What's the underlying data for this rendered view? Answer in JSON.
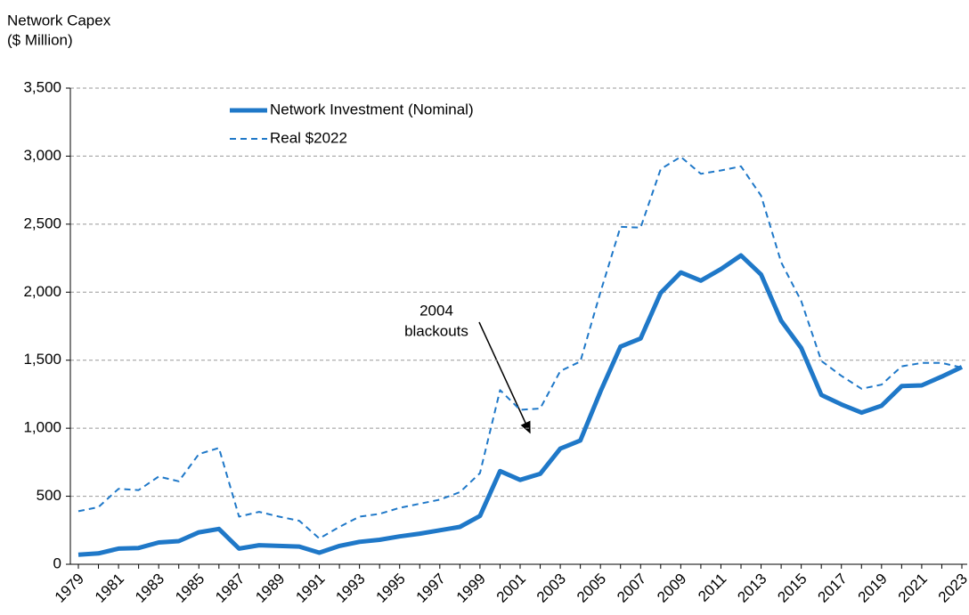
{
  "chart_data": {
    "type": "line",
    "y_label": [
      "Network Capex",
      "($ Million)"
    ],
    "annotation": [
      "2004",
      "blackouts"
    ],
    "categories": [
      "1979",
      null,
      "1981",
      null,
      "1983",
      null,
      "1985",
      null,
      "1987",
      null,
      "1989",
      null,
      "1991",
      null,
      "1993",
      null,
      "1995",
      null,
      "1997",
      null,
      "1999",
      null,
      "2001",
      null,
      "2003",
      null,
      "2005",
      null,
      "2007",
      null,
      "2009",
      null,
      "2011",
      null,
      "2013",
      null,
      "2015",
      null,
      "2017",
      null,
      "2019",
      null,
      "2021",
      null,
      "2023"
    ],
    "series": [
      {
        "name": "Network Investment (Nominal)",
        "color": "#1f78c8",
        "line_style": "solid",
        "values": [
          70,
          80,
          115,
          120,
          160,
          170,
          235,
          260,
          115,
          140,
          135,
          130,
          85,
          135,
          165,
          180,
          205,
          225,
          250,
          275,
          355,
          685,
          620,
          665,
          850,
          910,
          1270,
          1600,
          1660,
          1995,
          2145,
          2085,
          2170,
          2270,
          2130,
          1790,
          1590,
          1245,
          1175,
          1115,
          1165,
          1310,
          1315,
          1380,
          1450
        ]
      },
      {
        "name": "Real $2022",
        "color": "#1f78c8",
        "line_style": "dashed",
        "values": [
          390,
          420,
          555,
          545,
          645,
          610,
          810,
          855,
          350,
          385,
          350,
          320,
          190,
          275,
          350,
          370,
          415,
          445,
          475,
          530,
          670,
          1280,
          1135,
          1145,
          1420,
          1490,
          2000,
          2480,
          2475,
          2905,
          2995,
          2870,
          2895,
          2925,
          2710,
          2220,
          1935,
          1495,
          1385,
          1290,
          1320,
          1455,
          1480,
          1480,
          1445
        ]
      }
    ],
    "ylim": [
      0,
      3500
    ],
    "yticks": [
      0,
      500,
      {
        "value": 1000,
        "label": "1,000"
      },
      {
        "value": 1500,
        "label": "1,500"
      },
      {
        "value": 2000,
        "label": "2,000"
      },
      {
        "value": 2500,
        "label": "2,500"
      },
      {
        "value": 3000,
        "label": "3,000"
      },
      {
        "value": 3500,
        "label": "3,500"
      }
    ],
    "grid": true,
    "legend": "upper-left"
  }
}
